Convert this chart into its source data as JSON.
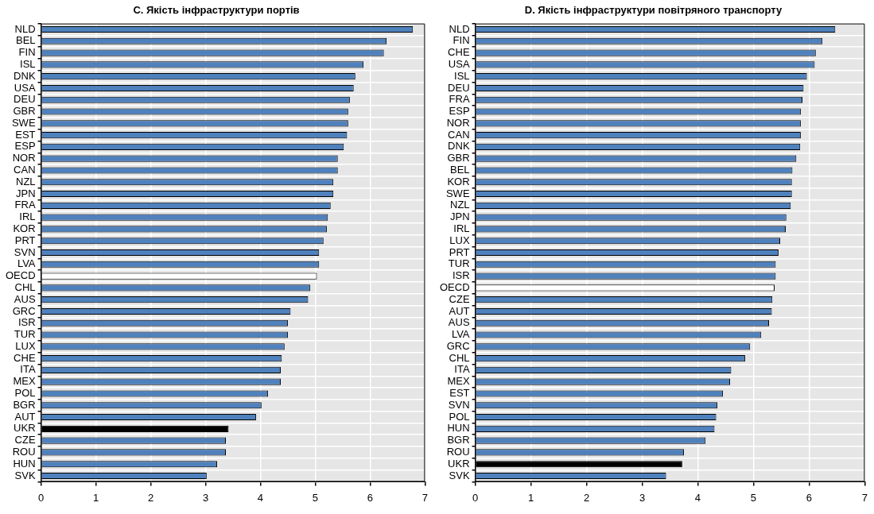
{
  "chart_data": [
    {
      "type": "bar",
      "orientation": "horizontal",
      "title": "C. Якість інфраструктури портів",
      "categories": [
        "NLD",
        "BEL",
        "FIN",
        "ISL",
        "DNK",
        "USA",
        "DEU",
        "GBR",
        "SWE",
        "EST",
        "ESP",
        "NOR",
        "CAN",
        "NZL",
        "JPN",
        "FRA",
        "IRL",
        "KOR",
        "PRT",
        "SVN",
        "LVA",
        "OECD",
        "CHL",
        "AUS",
        "GRC",
        "ISR",
        "TUR",
        "LUX",
        "CHE",
        "ITA",
        "MEX",
        "POL",
        "BGR",
        "AUT",
        "UKR",
        "CZE",
        "ROU",
        "HUN",
        "SVK"
      ],
      "values": [
        6.78,
        6.3,
        6.25,
        5.88,
        5.73,
        5.7,
        5.63,
        5.6,
        5.6,
        5.58,
        5.52,
        5.41,
        5.41,
        5.33,
        5.33,
        5.28,
        5.23,
        5.21,
        5.15,
        5.07,
        5.07,
        5.03,
        4.91,
        4.87,
        4.55,
        4.5,
        4.5,
        4.44,
        4.39,
        4.37,
        4.37,
        4.14,
        4.02,
        3.92,
        3.42,
        3.37,
        3.37,
        3.21,
        3.02
      ],
      "colors": [
        "#4f81bd",
        "#4f81bd",
        "#4f81bd",
        "#4f81bd",
        "#4f81bd",
        "#4f81bd",
        "#4f81bd",
        "#4f81bd",
        "#4f81bd",
        "#4f81bd",
        "#4f81bd",
        "#4f81bd",
        "#4f81bd",
        "#4f81bd",
        "#4f81bd",
        "#4f81bd",
        "#4f81bd",
        "#4f81bd",
        "#4f81bd",
        "#4f81bd",
        "#4f81bd",
        "#ffffff",
        "#4f81bd",
        "#4f81bd",
        "#4f81bd",
        "#4f81bd",
        "#4f81bd",
        "#4f81bd",
        "#4f81bd",
        "#4f81bd",
        "#4f81bd",
        "#4f81bd",
        "#4f81bd",
        "#4f81bd",
        "#000000",
        "#4f81bd",
        "#4f81bd",
        "#4f81bd",
        "#4f81bd"
      ],
      "xlim": [
        0,
        7
      ],
      "xticks": [
        0,
        1,
        2,
        3,
        4,
        5,
        6,
        7
      ],
      "grid": true,
      "legend": false
    },
    {
      "type": "bar",
      "orientation": "horizontal",
      "title": "D. Якість інфраструктури повітряного транспорту",
      "categories": [
        "NLD",
        "FIN",
        "CHE",
        "USA",
        "ISL",
        "DEU",
        "FRA",
        "ESP",
        "NOR",
        "CAN",
        "DNK",
        "GBR",
        "BEL",
        "KOR",
        "SWE",
        "NZL",
        "JPN",
        "IRL",
        "LUX",
        "PRT",
        "TUR",
        "ISR",
        "OECD",
        "CZE",
        "AUT",
        "AUS",
        "LVA",
        "GRC",
        "CHL",
        "ITA",
        "MEX",
        "EST",
        "SVN",
        "POL",
        "HUN",
        "BGR",
        "ROU",
        "UKR",
        "SVK"
      ],
      "values": [
        6.47,
        6.24,
        6.12,
        6.1,
        5.96,
        5.9,
        5.88,
        5.85,
        5.85,
        5.85,
        5.84,
        5.77,
        5.7,
        5.69,
        5.69,
        5.67,
        5.59,
        5.58,
        5.48,
        5.45,
        5.4,
        5.4,
        5.38,
        5.34,
        5.33,
        5.28,
        5.14,
        4.94,
        4.85,
        4.6,
        4.58,
        4.45,
        4.35,
        4.33,
        4.3,
        4.14,
        3.75,
        3.72,
        3.43
      ],
      "colors": [
        "#4f81bd",
        "#4f81bd",
        "#4f81bd",
        "#4f81bd",
        "#4f81bd",
        "#4f81bd",
        "#4f81bd",
        "#4f81bd",
        "#4f81bd",
        "#4f81bd",
        "#4f81bd",
        "#4f81bd",
        "#4f81bd",
        "#4f81bd",
        "#4f81bd",
        "#4f81bd",
        "#4f81bd",
        "#4f81bd",
        "#4f81bd",
        "#4f81bd",
        "#4f81bd",
        "#4f81bd",
        "#ffffff",
        "#4f81bd",
        "#4f81bd",
        "#4f81bd",
        "#4f81bd",
        "#4f81bd",
        "#4f81bd",
        "#4f81bd",
        "#4f81bd",
        "#4f81bd",
        "#4f81bd",
        "#4f81bd",
        "#4f81bd",
        "#4f81bd",
        "#4f81bd",
        "#000000",
        "#4f81bd"
      ],
      "xlim": [
        0,
        7
      ],
      "xticks": [
        0,
        1,
        2,
        3,
        4,
        5,
        6,
        7
      ],
      "grid": true,
      "legend": false
    }
  ]
}
